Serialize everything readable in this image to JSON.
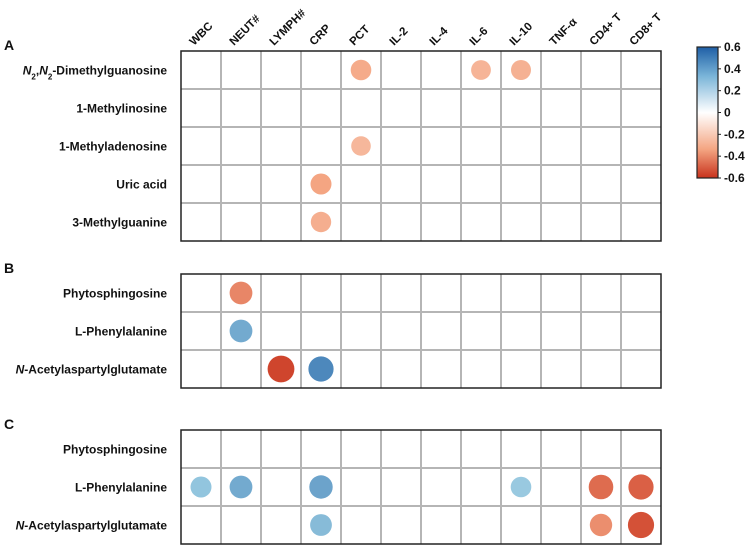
{
  "chart_data": {
    "type": "heatmap",
    "columns": [
      "WBC",
      "NEUT#",
      "LYMPH#",
      "CRP",
      "PCT",
      "IL-2",
      "IL-4",
      "IL-6",
      "IL-10",
      "TNF-α",
      "CD4+ T",
      "CD8+ T"
    ],
    "panels": [
      {
        "label": "A",
        "rows": [
          "N2,N2-Dimethylguanosine",
          "1-Methylinosine",
          "1-Methyladenosine",
          "Uric acid",
          "3-Methylguanine"
        ],
        "cells": [
          {
            "row": 0,
            "col": 4,
            "value": -0.28
          },
          {
            "row": 0,
            "col": 7,
            "value": -0.25
          },
          {
            "row": 0,
            "col": 8,
            "value": -0.26
          },
          {
            "row": 2,
            "col": 4,
            "value": -0.24
          },
          {
            "row": 3,
            "col": 3,
            "value": -0.3
          },
          {
            "row": 4,
            "col": 3,
            "value": -0.27
          }
        ]
      },
      {
        "label": "B",
        "rows": [
          "Phytosphingosine",
          "L-Phenylalanine",
          "N-Acetylaspartylglutamate"
        ],
        "cells": [
          {
            "row": 0,
            "col": 1,
            "value": -0.38
          },
          {
            "row": 1,
            "col": 1,
            "value": 0.38
          },
          {
            "row": 2,
            "col": 2,
            "value": -0.55
          },
          {
            "row": 2,
            "col": 3,
            "value": 0.48
          }
        ]
      },
      {
        "label": "C",
        "rows": [
          "Phytosphingosine",
          "L-Phenylalanine",
          "N-Acetylaspartylglutamate"
        ],
        "cells": [
          {
            "row": 1,
            "col": 0,
            "value": 0.3
          },
          {
            "row": 1,
            "col": 1,
            "value": 0.38
          },
          {
            "row": 1,
            "col": 3,
            "value": 0.4
          },
          {
            "row": 1,
            "col": 8,
            "value": 0.28
          },
          {
            "row": 1,
            "col": 10,
            "value": -0.45
          },
          {
            "row": 1,
            "col": 11,
            "value": -0.48
          },
          {
            "row": 2,
            "col": 3,
            "value": 0.33
          },
          {
            "row": 2,
            "col": 10,
            "value": -0.36
          },
          {
            "row": 2,
            "col": 11,
            "value": -0.52
          }
        ]
      }
    ],
    "colorbar": {
      "range": [
        -0.6,
        0.6
      ],
      "ticks": [
        "0.6",
        "0.4",
        "0.2",
        "0",
        "-0.2",
        "-0.4",
        "-0.6"
      ],
      "colors": {
        "negative": "#d73027",
        "neutral": "#ffffff",
        "positive": "#2c7bb6"
      }
    }
  }
}
